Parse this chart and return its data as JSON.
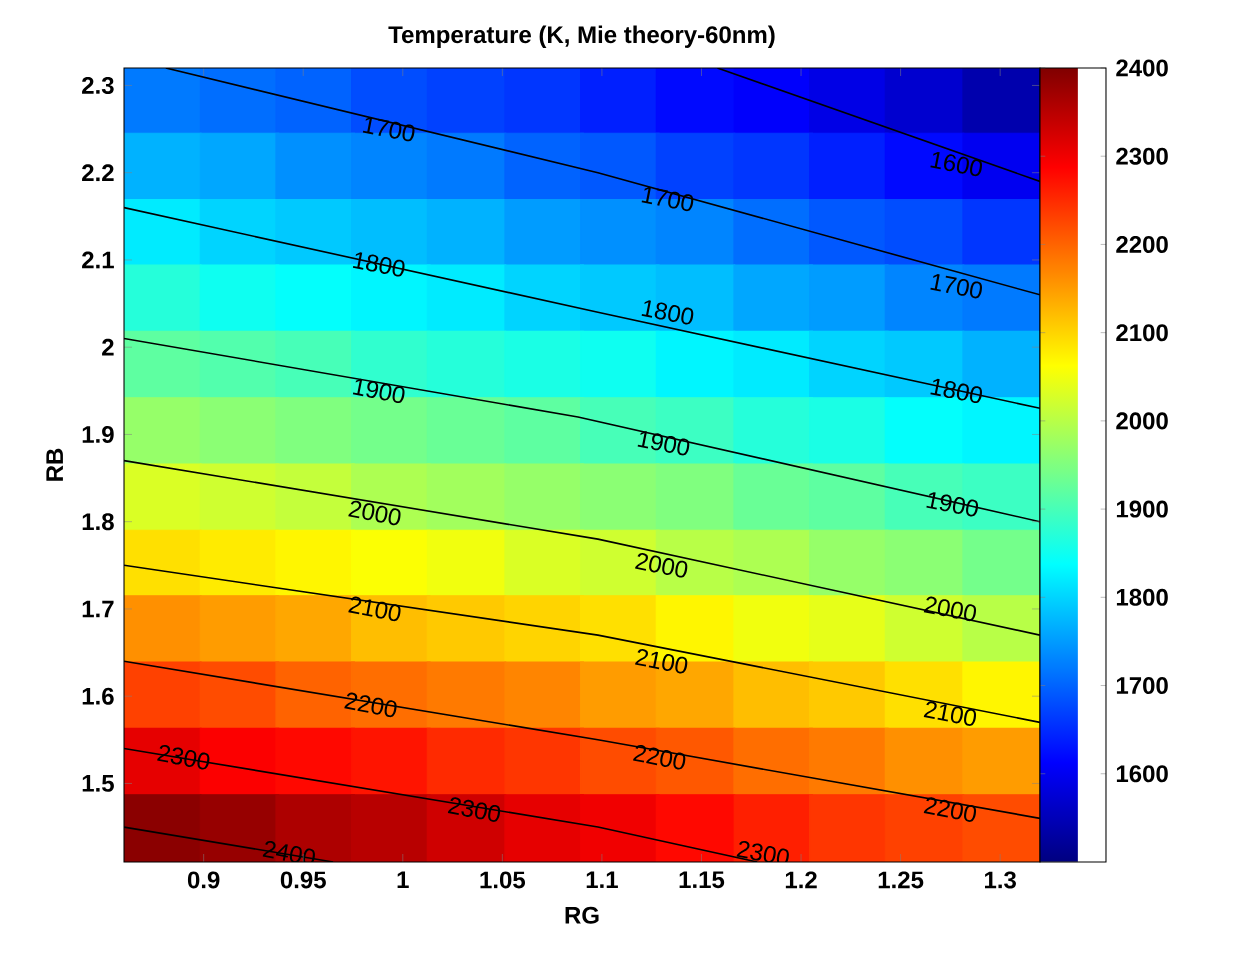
{
  "chart_data": {
    "type": "scatter",
    "title": "Temperature (K, Mie theory-60nm)",
    "xlabel": "RG",
    "ylabel": "RB",
    "series": [
      {
        "marker": "square",
        "colors": [
          "#007aff",
          "#006eff",
          "#0063ff",
          "#004dff",
          "#0041ff",
          "#0036ff",
          "#001fff",
          "#0009ff",
          "#0000fc",
          "#0000e6",
          "#0000cf",
          "#0000ad",
          "#00b2ff",
          "#00a7ff",
          "#0090ff",
          "#0085ff",
          "#007aff",
          "#0063ff",
          "#0058ff",
          "#0041ff",
          "#0036ff",
          "#001fff",
          "#0009ff",
          "#0000f1",
          "#00ebff",
          "#00d4ff",
          "#00c9ff",
          "#00beff",
          "#00b2ff",
          "#009cff",
          "#0090ff",
          "#0085ff",
          "#006eff",
          "#0058ff",
          "#004dff",
          "#0036ff",
          "#25ffda",
          "#0efff1",
          "#03fffc",
          "#00f6ff",
          "#00ebff",
          "#00d4ff",
          "#00c9ff",
          "#00beff",
          "#00a7ff",
          "#009cff",
          "#0085ff",
          "#007aff",
          "#5effa1",
          "#52ffad",
          "#47ffb8",
          "#30ffcf",
          "#25ffda",
          "#1affe5",
          "#0efff1",
          "#00f6ff",
          "#00ebff",
          "#00d4ff",
          "#00c9ff",
          "#00b2ff",
          "#96ff69",
          "#8bff74",
          "#80ff7f",
          "#74ff8b",
          "#69ff96",
          "#5effa1",
          "#47ffb8",
          "#3cffc3",
          "#25ffda",
          "#1affe5",
          "#03fffc",
          "#00f6ff",
          "#daff25",
          "#cfff30",
          "#c4ff3b",
          "#adff52",
          "#a2ff5d",
          "#96ff69",
          "#8bff74",
          "#80ff7f",
          "#69ff96",
          "#5effa1",
          "#47ffb8",
          "#3cffc3",
          "#ffe000",
          "#ffeb00",
          "#fff600",
          "#fcff03",
          "#f1ff0e",
          "#daff25",
          "#cfff30",
          "#b8ff47",
          "#adff52",
          "#96ff69",
          "#8bff74",
          "#74ff8b",
          "#ff9000",
          "#ff9c00",
          "#ffa700",
          "#ffbe00",
          "#ffc900",
          "#ffd400",
          "#ffe000",
          "#fff600",
          "#f1ff0e",
          "#e6ff19",
          "#cfff30",
          "#b8ff47",
          "#ff4100",
          "#ff4c00",
          "#ff6300",
          "#ff6e00",
          "#ff7a00",
          "#ff8500",
          "#ff9c00",
          "#ffa700",
          "#ffbe00",
          "#ffc900",
          "#ffe000",
          "#fff600",
          "#e60000",
          "#fc0000",
          "#ff0800",
          "#ff1400",
          "#ff2a00",
          "#ff3600",
          "#ff4c00",
          "#ff5800",
          "#ff6e00",
          "#ff7a00",
          "#ff9000",
          "#ff9c00",
          "#8b0000",
          "#970000",
          "#ad0000",
          "#b80000",
          "#cf0000",
          "#e60000",
          "#f10000",
          "#ff0800",
          "#ff1f00",
          "#ff3600",
          "#ff4100",
          "#ff4c00"
        ],
        "x": [
          0.879,
          0.918,
          0.956,
          0.994,
          1.032,
          1.071,
          1.109,
          1.147,
          1.186,
          1.224,
          1.262,
          1.301,
          0.879,
          0.918,
          0.956,
          0.994,
          1.032,
          1.071,
          1.109,
          1.147,
          1.186,
          1.224,
          1.262,
          1.301,
          0.879,
          0.918,
          0.956,
          0.994,
          1.032,
          1.071,
          1.109,
          1.147,
          1.186,
          1.224,
          1.262,
          1.301,
          0.879,
          0.918,
          0.956,
          0.994,
          1.032,
          1.071,
          1.109,
          1.147,
          1.186,
          1.224,
          1.262,
          1.301,
          0.879,
          0.918,
          0.956,
          0.994,
          1.032,
          1.071,
          1.109,
          1.147,
          1.186,
          1.224,
          1.262,
          1.301,
          0.879,
          0.918,
          0.956,
          0.994,
          1.032,
          1.071,
          1.109,
          1.147,
          1.186,
          1.224,
          1.262,
          1.301,
          0.879,
          0.918,
          0.956,
          0.994,
          1.032,
          1.071,
          1.109,
          1.147,
          1.186,
          1.224,
          1.262,
          1.301,
          0.879,
          0.918,
          0.956,
          0.994,
          1.032,
          1.071,
          1.109,
          1.147,
          1.186,
          1.224,
          1.262,
          1.301,
          0.879,
          0.918,
          0.956,
          0.994,
          1.032,
          1.071,
          1.109,
          1.147,
          1.186,
          1.224,
          1.262,
          1.301,
          0.879,
          0.918,
          0.956,
          0.994,
          1.032,
          1.071,
          1.109,
          1.147,
          1.186,
          1.224,
          1.262,
          1.301,
          0.879,
          0.918,
          0.956,
          0.994,
          1.032,
          1.071,
          1.109,
          1.147,
          1.186,
          1.224,
          1.262,
          1.301,
          0.879,
          0.918,
          0.956,
          0.994,
          1.032,
          1.071,
          1.109,
          1.147,
          1.186,
          1.224,
          1.262,
          1.301
        ],
        "values": [
          2.282,
          2.282,
          2.282,
          2.282,
          2.282,
          2.282,
          2.282,
          2.282,
          2.282,
          2.282,
          2.282,
          2.282,
          2.206,
          2.206,
          2.206,
          2.206,
          2.206,
          2.206,
          2.206,
          2.206,
          2.206,
          2.206,
          2.206,
          2.206,
          2.13,
          2.13,
          2.13,
          2.13,
          2.13,
          2.13,
          2.13,
          2.13,
          2.13,
          2.13,
          2.13,
          2.13,
          2.055,
          2.055,
          2.055,
          2.055,
          2.055,
          2.055,
          2.055,
          2.055,
          2.055,
          2.055,
          2.055,
          2.055,
          1.979,
          1.979,
          1.979,
          1.979,
          1.979,
          1.979,
          1.979,
          1.979,
          1.979,
          1.979,
          1.979,
          1.979,
          1.903,
          1.903,
          1.903,
          1.903,
          1.903,
          1.903,
          1.903,
          1.903,
          1.903,
          1.903,
          1.903,
          1.903,
          1.827,
          1.827,
          1.827,
          1.827,
          1.827,
          1.827,
          1.827,
          1.827,
          1.827,
          1.827,
          1.827,
          1.827,
          1.751,
          1.751,
          1.751,
          1.751,
          1.751,
          1.751,
          1.751,
          1.751,
          1.751,
          1.751,
          1.751,
          1.751,
          1.676,
          1.676,
          1.676,
          1.676,
          1.676,
          1.676,
          1.676,
          1.676,
          1.676,
          1.676,
          1.676,
          1.676,
          1.6,
          1.6,
          1.6,
          1.6,
          1.6,
          1.6,
          1.6,
          1.6,
          1.6,
          1.6,
          1.6,
          1.6,
          1.524,
          1.524,
          1.524,
          1.524,
          1.524,
          1.524,
          1.524,
          1.524,
          1.524,
          1.524,
          1.524,
          1.524,
          1.448,
          1.448,
          1.448,
          1.448,
          1.448,
          1.448,
          1.448,
          1.448,
          1.448,
          1.448,
          1.448,
          1.448
        ],
        "cvalues": [
          1720,
          1710,
          1700,
          1680,
          1670,
          1660,
          1640,
          1620,
          1610,
          1590,
          1570,
          1540,
          1770,
          1760,
          1740,
          1730,
          1720,
          1700,
          1690,
          1670,
          1660,
          1640,
          1620,
          1600,
          1820,
          1800,
          1790,
          1780,
          1770,
          1750,
          1740,
          1730,
          1710,
          1690,
          1680,
          1660,
          1870,
          1850,
          1840,
          1830,
          1820,
          1800,
          1790,
          1780,
          1760,
          1750,
          1730,
          1720,
          1920,
          1910,
          1900,
          1880,
          1870,
          1860,
          1850,
          1830,
          1820,
          1800,
          1790,
          1770,
          1970,
          1960,
          1950,
          1940,
          1930,
          1920,
          1900,
          1890,
          1870,
          1860,
          1840,
          1830,
          2030,
          2020,
          2010,
          1990,
          1980,
          1970,
          1960,
          1950,
          1930,
          1920,
          1900,
          1890,
          2090,
          2080,
          2070,
          2060,
          2050,
          2030,
          2020,
          2000,
          1990,
          1970,
          1960,
          1940,
          2160,
          2150,
          2140,
          2120,
          2110,
          2100,
          2090,
          2070,
          2050,
          2040,
          2020,
          2000,
          2230,
          2220,
          2200,
          2190,
          2180,
          2170,
          2150,
          2140,
          2120,
          2110,
          2090,
          2070,
          2310,
          2290,
          2280,
          2270,
          2250,
          2240,
          2220,
          2210,
          2190,
          2180,
          2160,
          2150,
          2390,
          2380,
          2360,
          2350,
          2330,
          2310,
          2300,
          2280,
          2260,
          2240,
          2230,
          2220
        ]
      },
      {
        "type": "line",
        "color": "#000000",
        "x": [
          1.158,
          1.32
        ],
        "values": [
          2.32,
          2.19
        ]
      },
      {
        "type": "line",
        "color": "#000000",
        "x": [
          0.881,
          1.098,
          1.32
        ],
        "values": [
          2.32,
          2.2,
          2.06
        ]
      },
      {
        "type": "line",
        "color": "#000000",
        "x": [
          0.86,
          1.098,
          1.32
        ],
        "values": [
          2.16,
          2.04,
          1.93
        ]
      },
      {
        "type": "line",
        "color": "#000000",
        "x": [
          0.86,
          1.088,
          1.32
        ],
        "values": [
          2.01,
          1.92,
          1.8
        ]
      },
      {
        "type": "line",
        "color": "#000000",
        "x": [
          0.86,
          1.098,
          1.32
        ],
        "values": [
          1.87,
          1.78,
          1.67
        ]
      },
      {
        "type": "line",
        "color": "#000000",
        "x": [
          0.86,
          1.098,
          1.32
        ],
        "values": [
          1.75,
          1.67,
          1.57
        ]
      },
      {
        "type": "line",
        "color": "#000000",
        "x": [
          0.86,
          1.098,
          1.32
        ],
        "values": [
          1.64,
          1.55,
          1.46
        ]
      },
      {
        "type": "line",
        "color": "#000000",
        "x": [
          0.86,
          1.098,
          1.178
        ],
        "values": [
          1.54,
          1.45,
          1.41
        ]
      },
      {
        "type": "line",
        "color": "#000000",
        "x": [
          0.86,
          0.965
        ],
        "values": [
          1.45,
          1.41
        ]
      }
    ],
    "annotations": [
      {
        "text": "1700",
        "x": 0.993,
        "y": 2.25
      },
      {
        "text": "1600",
        "x": 1.278,
        "y": 2.21
      },
      {
        "text": "1700",
        "x": 1.133,
        "y": 2.17
      },
      {
        "text": "1700",
        "x": 1.278,
        "y": 2.07
      },
      {
        "text": "1800",
        "x": 0.988,
        "y": 2.095
      },
      {
        "text": "1800",
        "x": 1.133,
        "y": 2.04
      },
      {
        "text": "1800",
        "x": 1.278,
        "y": 1.95
      },
      {
        "text": "1900",
        "x": 0.988,
        "y": 1.95
      },
      {
        "text": "1900",
        "x": 1.131,
        "y": 1.89
      },
      {
        "text": "1900",
        "x": 1.276,
        "y": 1.82
      },
      {
        "text": "2000",
        "x": 0.986,
        "y": 1.81
      },
      {
        "text": "2000",
        "x": 1.13,
        "y": 1.75
      },
      {
        "text": "2000",
        "x": 1.275,
        "y": 1.7
      },
      {
        "text": "2100",
        "x": 0.986,
        "y": 1.7
      },
      {
        "text": "2100",
        "x": 1.13,
        "y": 1.64
      },
      {
        "text": "2100",
        "x": 1.275,
        "y": 1.58
      },
      {
        "text": "2200",
        "x": 0.984,
        "y": 1.59
      },
      {
        "text": "2200",
        "x": 1.129,
        "y": 1.53
      },
      {
        "text": "2200",
        "x": 1.275,
        "y": 1.47
      },
      {
        "text": "2300",
        "x": 0.89,
        "y": 1.53
      },
      {
        "text": "2300",
        "x": 1.036,
        "y": 1.47
      },
      {
        "text": "2300",
        "x": 1.181,
        "y": 1.42
      },
      {
        "text": "2400",
        "x": 0.943,
        "y": 1.42
      }
    ],
    "xlim": [
      0.86,
      1.32
    ],
    "ylim": [
      1.41,
      2.32
    ],
    "xticks": [
      0.9,
      0.95,
      1,
      1.05,
      1.1,
      1.15,
      1.2,
      1.25,
      1.3
    ],
    "yticks": [
      1.5,
      1.6,
      1.7,
      1.8,
      1.9,
      2,
      2.1,
      2.2,
      2.3
    ],
    "clim": [
      1500,
      2400
    ],
    "cticks": [
      1600,
      1700,
      1800,
      1900,
      2000,
      2100,
      2200,
      2300,
      2400
    ]
  }
}
